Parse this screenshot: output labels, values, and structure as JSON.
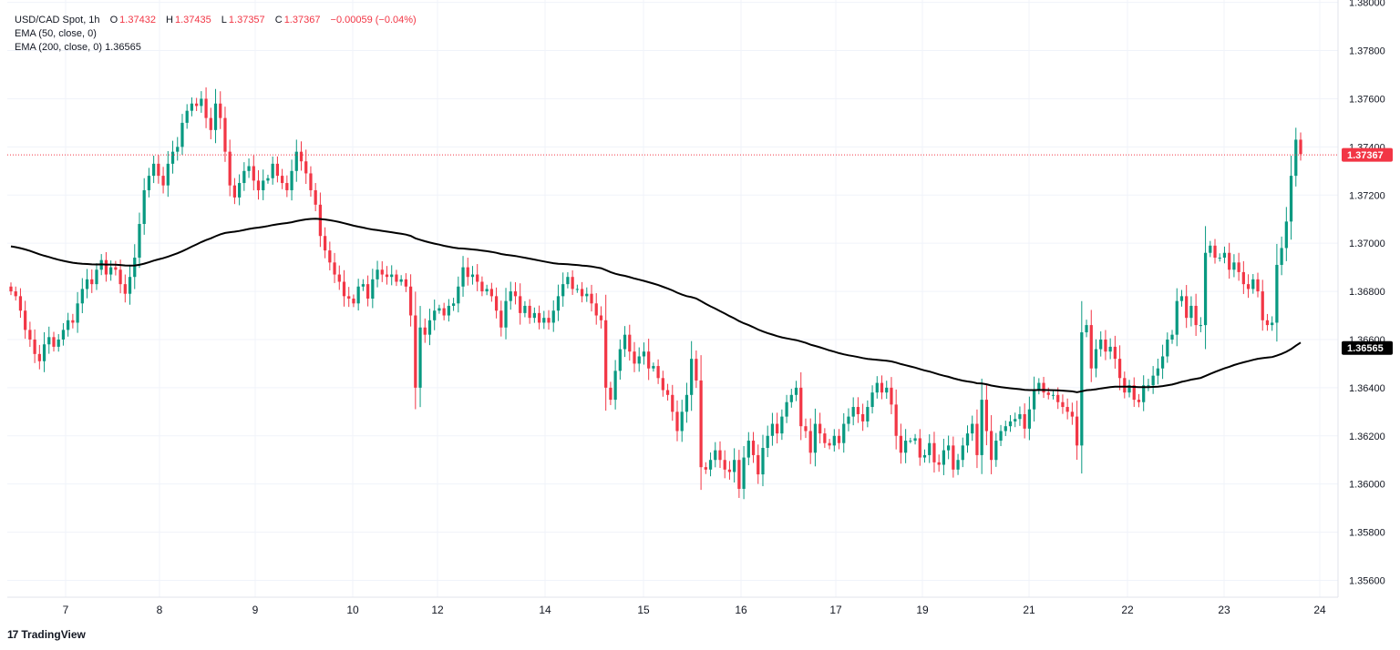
{
  "legend": {
    "symbol": "USD/CAD Spot, 1h",
    "open_label": "O",
    "open": "1.37432",
    "high_label": "H",
    "high": "1.37435",
    "low_label": "L",
    "low": "1.37357",
    "close_label": "C",
    "close": "1.37367",
    "change": "−0.00059 (−0.04%)",
    "ema50_label": "EMA (50, close, 0)",
    "ema200_label": "EMA (200, close, 0)",
    "ema200_value": "1.36565"
  },
  "brand": {
    "name": "TradingView",
    "logo": "17"
  },
  "colors": {
    "up": "#089981",
    "down": "#f23645",
    "ema": "#000000",
    "grid": "#f0f3fa",
    "last_price_line": "#f23645",
    "ema_badge": "#000000"
  },
  "chart_data": {
    "type": "candlestick",
    "symbol": "USD/CAD",
    "interval": "1h",
    "ylim": [
      1.3553,
      1.3801
    ],
    "y_ticks": [
      "1.38000",
      "1.37800",
      "1.37600",
      "1.37400",
      "1.37200",
      "1.37000",
      "1.36800",
      "1.36600",
      "1.36400",
      "1.36200",
      "1.36000",
      "1.35800",
      "1.35600"
    ],
    "x_ticks": [
      "7",
      "8",
      "9",
      "10",
      "12",
      "14",
      "15",
      "16",
      "17",
      "19",
      "21",
      "22",
      "23",
      "24"
    ],
    "last_price": 1.37367,
    "last_price_label": "1.37367",
    "ema200_last": 1.36565,
    "ema200_label": "1.36565",
    "grid": true,
    "candles_close": [
      1.368,
      1.3678,
      1.3672,
      1.3664,
      1.366,
      1.3654,
      1.3651,
      1.3658,
      1.3661,
      1.3657,
      1.366,
      1.3664,
      1.3668,
      1.3667,
      1.3675,
      1.3681,
      1.3685,
      1.3683,
      1.3689,
      1.3693,
      1.3687,
      1.369,
      1.3689,
      1.3683,
      1.3679,
      1.3686,
      1.3694,
      1.3708,
      1.3722,
      1.3728,
      1.3733,
      1.3728,
      1.3724,
      1.3733,
      1.3738,
      1.374,
      1.375,
      1.3755,
      1.3758,
      1.3757,
      1.376,
      1.3752,
      1.3747,
      1.3758,
      1.3752,
      1.3738,
      1.3724,
      1.3719,
      1.3725,
      1.373,
      1.3732,
      1.3726,
      1.3722,
      1.3726,
      1.3727,
      1.3733,
      1.3728,
      1.3725,
      1.3722,
      1.373,
      1.3738,
      1.3734,
      1.3729,
      1.3722,
      1.3716,
      1.3703,
      1.3697,
      1.3692,
      1.3687,
      1.3684,
      1.3678,
      1.3677,
      1.3675,
      1.3682,
      1.3683,
      1.3677,
      1.3685,
      1.3689,
      1.3687,
      1.3686,
      1.3687,
      1.3684,
      1.3685,
      1.3682,
      1.367,
      1.364,
      1.3665,
      1.3662,
      1.3668,
      1.3672,
      1.3673,
      1.367,
      1.3674,
      1.3675,
      1.3682,
      1.369,
      1.3686,
      1.3687,
      1.3684,
      1.368,
      1.3681,
      1.3678,
      1.3672,
      1.3665,
      1.3676,
      1.368,
      1.3678,
      1.3671,
      1.3674,
      1.3669,
      1.3671,
      1.3667,
      1.3669,
      1.3667,
      1.3672,
      1.3678,
      1.3683,
      1.3686,
      1.3681,
      1.3681,
      1.3678,
      1.3679,
      1.3675,
      1.367,
      1.3668,
      1.364,
      1.3635,
      1.3647,
      1.3656,
      1.3662,
      1.3655,
      1.365,
      1.3653,
      1.3655,
      1.3648,
      1.3649,
      1.3644,
      1.3639,
      1.3637,
      1.363,
      1.3622,
      1.363,
      1.3637,
      1.3652,
      1.3643,
      1.3607,
      1.3606,
      1.361,
      1.3614,
      1.361,
      1.3606,
      1.3605,
      1.361,
      1.3598,
      1.3611,
      1.3618,
      1.3612,
      1.3604,
      1.3615,
      1.362,
      1.3625,
      1.3621,
      1.3628,
      1.3634,
      1.3637,
      1.364,
      1.3624,
      1.3622,
      1.3613,
      1.3625,
      1.3621,
      1.3617,
      1.3616,
      1.362,
      1.3617,
      1.3625,
      1.3628,
      1.3632,
      1.3629,
      1.3626,
      1.3632,
      1.3638,
      1.3642,
      1.3638,
      1.364,
      1.3633,
      1.362,
      1.3613,
      1.3618,
      1.3618,
      1.3619,
      1.3611,
      1.3612,
      1.3617,
      1.3609,
      1.3608,
      1.3614,
      1.3616,
      1.3606,
      1.361,
      1.3616,
      1.3621,
      1.3625,
      1.3612,
      1.3635,
      1.3622,
      1.361,
      1.3618,
      1.3622,
      1.3624,
      1.3626,
      1.3627,
      1.3629,
      1.3623,
      1.3631,
      1.3639,
      1.3642,
      1.3638,
      1.3637,
      1.3637,
      1.3634,
      1.3632,
      1.363,
      1.3628,
      1.3616,
      1.3663,
      1.3666,
      1.3648,
      1.3656,
      1.366,
      1.3655,
      1.3657,
      1.3652,
      1.3644,
      1.3638,
      1.3641,
      1.3635,
      1.3634,
      1.3641,
      1.3641,
      1.3645,
      1.3648,
      1.3653,
      1.366,
      1.3662,
      1.3676,
      1.3678,
      1.3669,
      1.3674,
      1.3666,
      1.3666,
      1.3696,
      1.3699,
      1.3694,
      1.3694,
      1.3696,
      1.3689,
      1.3692,
      1.3688,
      1.3683,
      1.3681,
      1.3685,
      1.368,
      1.3668,
      1.3666,
      1.3667,
      1.3691,
      1.3698,
      1.3709,
      1.3728,
      1.3743,
      1.3737
    ]
  }
}
